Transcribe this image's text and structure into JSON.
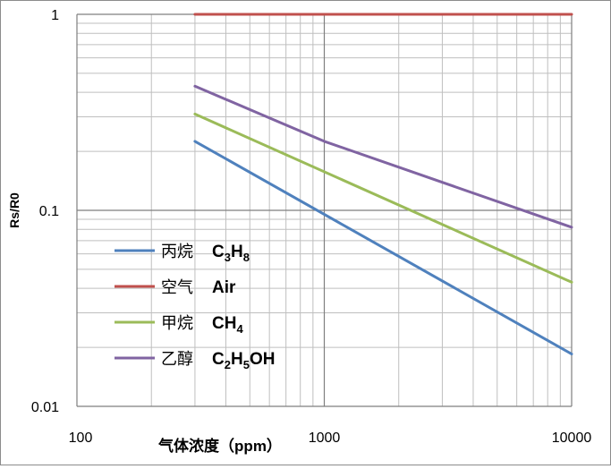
{
  "chart_data": {
    "type": "line",
    "title": "",
    "xlabel": "气体浓度（ppm）",
    "ylabel": "Rs/R0",
    "x_scale": "log",
    "y_scale": "log",
    "xlim": [
      100,
      10000
    ],
    "ylim": [
      0.01,
      1
    ],
    "x_ticks": [
      "100",
      "1000",
      "10000"
    ],
    "y_ticks": [
      "0.01",
      "0.1",
      "1"
    ],
    "grid": true,
    "legend_position": "left-bottom",
    "series": [
      {
        "name": "丙烷",
        "formula": {
          "parts": [
            "C",
            "3",
            "H",
            "8"
          ],
          "subs": [
            false,
            true,
            false,
            true
          ]
        },
        "color": "#4f81bd",
        "x": [
          300,
          10000
        ],
        "y": [
          0.225,
          0.0185
        ]
      },
      {
        "name": "空气",
        "formula": {
          "parts": [
            "Air"
          ],
          "subs": [
            false
          ]
        },
        "color": "#c0504d",
        "x": [
          300,
          10000
        ],
        "y": [
          1,
          1
        ]
      },
      {
        "name": "甲烷",
        "formula": {
          "parts": [
            "CH",
            "4"
          ],
          "subs": [
            false,
            true
          ]
        },
        "color": "#9bbb59",
        "x": [
          300,
          10000
        ],
        "y": [
          0.31,
          0.043
        ]
      },
      {
        "name": "乙醇",
        "formula": {
          "parts": [
            "C",
            "2",
            "H",
            "5",
            "OH"
          ],
          "subs": [
            false,
            true,
            false,
            true,
            false
          ]
        },
        "color": "#8064a2",
        "x": [
          300,
          1000,
          10000
        ],
        "y": [
          0.43,
          0.225,
          0.082
        ]
      }
    ]
  }
}
